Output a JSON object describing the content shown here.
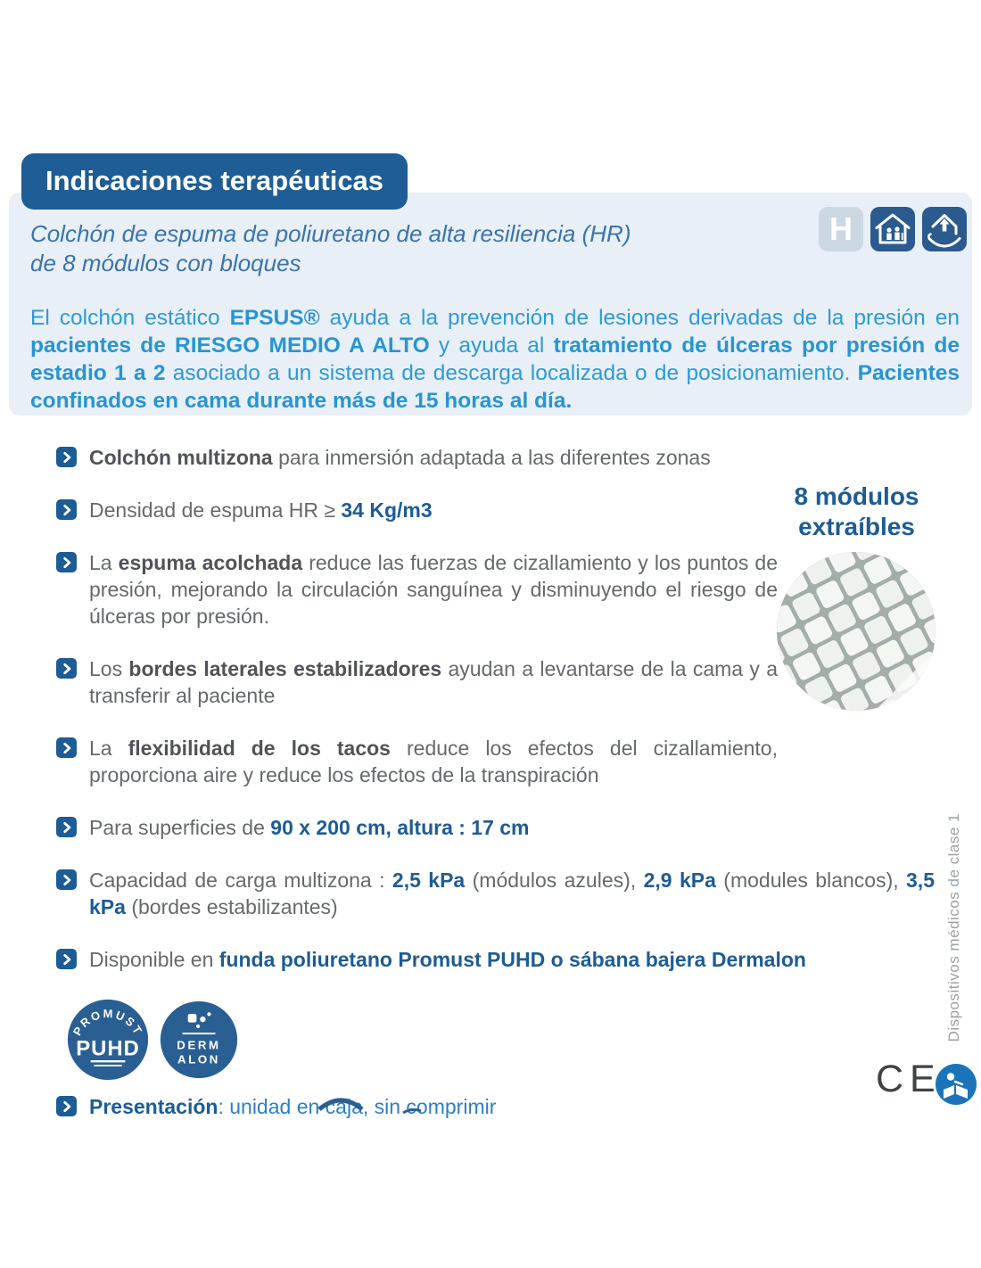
{
  "header": {
    "badge": "Indicaciones terapéuticas"
  },
  "panel": {
    "subtitle_line1": "Colchón de espuma de poliuretano de alta resiliencia (HR)",
    "subtitle_line2": "de 8 módulos con bloques",
    "icon_h_letter": "H",
    "icons": [
      "hospital-icon",
      "nursing-home-icon",
      "home-care-icon"
    ],
    "intro_segments": [
      {
        "t": "El colchón estático ",
        "s": "cyan"
      },
      {
        "t": "EPSUS®",
        "s": "bcyan"
      },
      {
        "t": " ayuda a la prevención de lesiones derivadas de la presión en ",
        "s": "cyan"
      },
      {
        "t": "pacientes de RIESGO MEDIO A ALTO",
        "s": "bcyan"
      },
      {
        "t": " y ayuda al ",
        "s": "cyan"
      },
      {
        "t": "tratamiento de úlceras por presión de estadio 1 a 2",
        "s": "bcyan"
      },
      {
        "t": " asociado a un sistema de descarga localizada o de posicionamiento. ",
        "s": "cyan"
      },
      {
        "t": "Pacientes confinados en cama durante más de 15 horas al día.",
        "s": "bcyan"
      }
    ]
  },
  "bullets": [
    {
      "segments": [
        {
          "t": "Colchón multizona",
          "s": "bgray"
        },
        {
          "t": " para inmersión adaptada a las diferentes zonas",
          "s": "gray"
        }
      ]
    },
    {
      "segments": [
        {
          "t": "Densidad de espuma HR ≥ ",
          "s": "gray"
        },
        {
          "t": "34 Kg/m3",
          "s": "bblue"
        }
      ]
    },
    {
      "segments": [
        {
          "t": "La ",
          "s": "gray"
        },
        {
          "t": "espuma acolchada",
          "s": "bgray"
        },
        {
          "t": " reduce las fuerzas de cizallamiento y los puntos de presión, mejorando la circulación sanguínea y disminuyendo el riesgo de úlceras por presión.",
          "s": "gray"
        }
      ]
    },
    {
      "segments": [
        {
          "t": "Los ",
          "s": "gray"
        },
        {
          "t": "bordes laterales estabilizadores",
          "s": "bgray"
        },
        {
          "t": " ayudan a levantarse de la cama y a transferir al paciente",
          "s": "gray"
        }
      ]
    },
    {
      "segments": [
        {
          "t": "La ",
          "s": "gray"
        },
        {
          "t": "flexibilidad de los tacos",
          "s": "bgray"
        },
        {
          "t": " reduce los efectos del cizallamiento, proporciona aire y reduce los efectos de la transpiración",
          "s": "gray"
        }
      ]
    },
    {
      "segments": [
        {
          "t": "Para superficies de ",
          "s": "gray"
        },
        {
          "t": "90 x 200 cm, altura : 17 cm",
          "s": "bblue"
        }
      ]
    },
    {
      "segments": [
        {
          "t": "Capacidad de carga multizona : ",
          "s": "gray"
        },
        {
          "t": "2,5 kPa",
          "s": "bblue"
        },
        {
          "t": " (módulos azules), ",
          "s": "gray"
        },
        {
          "t": "2,9 kPa",
          "s": "bblue"
        },
        {
          "t": " (modules blancos), ",
          "s": "gray"
        },
        {
          "t": "3,5 kPa",
          "s": "bblue"
        },
        {
          "t": " (bordes estabilizantes)",
          "s": "gray"
        }
      ]
    },
    {
      "segments": [
        {
          "t": "Disponible en ",
          "s": "gray"
        },
        {
          "t": "funda poliuretano Promust PUHD o sábana bajera Dermalon",
          "s": "bblue"
        }
      ]
    },
    {
      "segments": [
        {
          "t": "Presentación",
          "s": "bblue"
        },
        {
          "t": ": unidad en caja, sin comprimir",
          "s": "blue"
        }
      ]
    }
  ],
  "side": {
    "modules_caption_line1": "8 módulos",
    "modules_caption_line2": "extraíbles"
  },
  "logos": {
    "promust_arc": "PROMUST",
    "promust_name": "PUHD",
    "dermalon_line1": "DERM",
    "dermalon_line2": "ALON"
  },
  "footer": {
    "ce_mark": "CE",
    "vertical_note": "Dispositivos médicos de clase 1"
  },
  "colors": {
    "brand_dark_blue": "#1d5c94",
    "accent_cyan": "#2e9ad6",
    "panel_bg": "#e8eff6",
    "text_gray": "#64696e",
    "logo_blue": "#2a5f94",
    "manual_icon_blue": "#1b74ba"
  }
}
